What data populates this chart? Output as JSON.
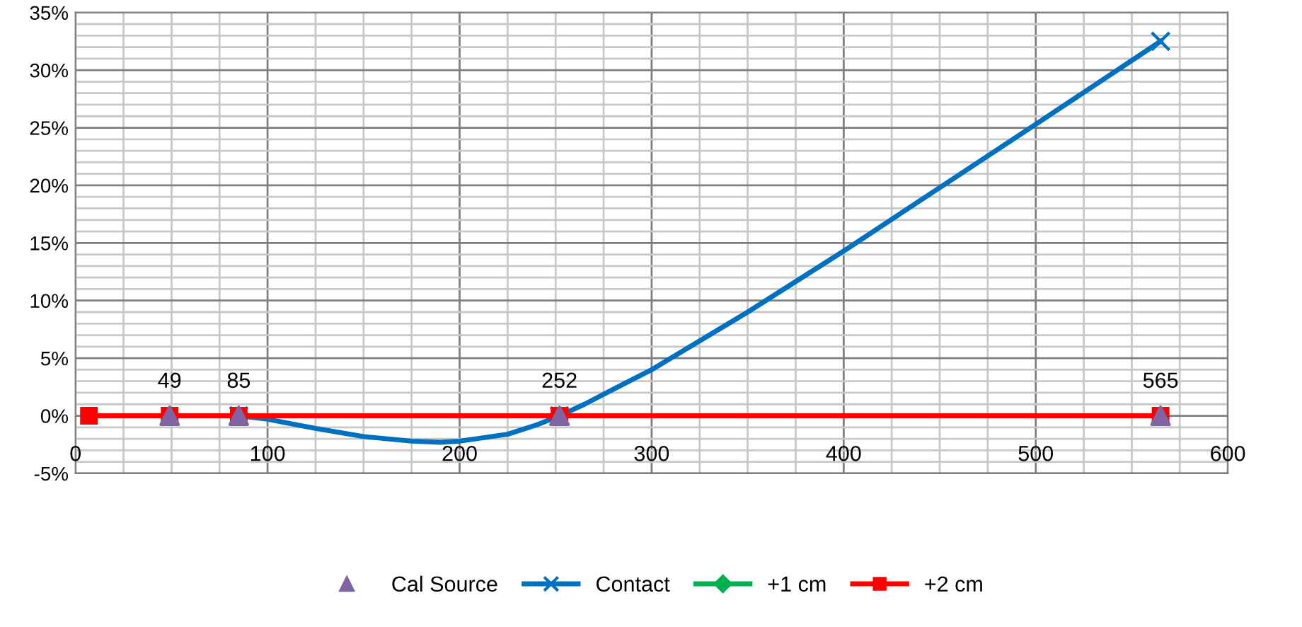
{
  "chart_data": {
    "type": "line",
    "series": [
      {
        "name": "Cal Source",
        "type": "scatter",
        "color": "#8064a2",
        "marker": "triangle",
        "x": [
          49,
          85,
          252,
          565
        ],
        "values": [
          0,
          0,
          0,
          0
        ]
      },
      {
        "name": "Contact",
        "color": "#0070c0",
        "marker": "none",
        "x": [
          85,
          100,
          125,
          150,
          175,
          190,
          200,
          225,
          240,
          252,
          265,
          280,
          300,
          350,
          400,
          450,
          500,
          565
        ],
        "values": [
          0,
          -0.3,
          -1.1,
          -1.8,
          -2.2,
          -2.3,
          -2.2,
          -1.6,
          -0.8,
          0,
          1.0,
          2.3,
          4.0,
          9.0,
          14.3,
          19.8,
          25.3,
          32.5
        ]
      },
      {
        "type": "scatter",
        "color": "#0070c0",
        "marker": "cross",
        "x": [
          85,
          252,
          565
        ],
        "values": [
          0,
          0,
          32.5
        ]
      },
      {
        "name": "+1 cm",
        "color": "#00b050",
        "marker": "diamond"
      },
      {
        "name": "+2 cm",
        "color": "#ff0000",
        "marker": "square",
        "x": [
          7,
          49,
          85,
          252,
          565
        ],
        "values": [
          0,
          0,
          0,
          0,
          0
        ]
      }
    ],
    "annotations": [
      {
        "text": "49",
        "x": 49,
        "y": 0
      },
      {
        "text": "85",
        "x": 85,
        "y": 0
      },
      {
        "text": "252",
        "x": 252,
        "y": 0
      },
      {
        "text": "565",
        "x": 565,
        "y": 0
      }
    ],
    "xlim": [
      0,
      600
    ],
    "xticks": [
      0,
      100,
      200,
      300,
      400,
      500,
      600
    ],
    "ylim": [
      -5,
      35
    ],
    "yticks": [
      {
        "value": -5,
        "label": "-5%"
      },
      {
        "value": 0,
        "label": "0%"
      },
      {
        "value": 5,
        "label": "5%"
      },
      {
        "value": 10,
        "label": "10%"
      },
      {
        "value": 15,
        "label": "15%"
      },
      {
        "value": 20,
        "label": "20%"
      },
      {
        "value": 25,
        "label": "25%"
      },
      {
        "value": 30,
        "label": "30%"
      },
      {
        "value": 35,
        "label": "35%"
      }
    ],
    "grid": true,
    "legend": "bottom"
  }
}
